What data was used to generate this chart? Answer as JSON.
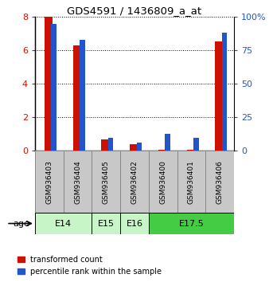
{
  "title": "GDS4591 / 1436809_a_at",
  "samples": [
    "GSM936403",
    "GSM936404",
    "GSM936405",
    "GSM936402",
    "GSM936400",
    "GSM936401",
    "GSM936406"
  ],
  "transformed_count": [
    8.0,
    6.3,
    0.7,
    0.4,
    0.05,
    0.05,
    6.55
  ],
  "percentile_rank": [
    95,
    83,
    10,
    6,
    13,
    10,
    88
  ],
  "age_boundaries": [
    {
      "label": "E14",
      "start": 0,
      "end": 1,
      "color": "#c8f5c8"
    },
    {
      "label": "E15",
      "start": 2,
      "end": 2,
      "color": "#c8f5c8"
    },
    {
      "label": "E16",
      "start": 3,
      "end": 3,
      "color": "#c8f5c8"
    },
    {
      "label": "E17.5",
      "start": 4,
      "end": 6,
      "color": "#44cc44"
    }
  ],
  "ylim_left": [
    0,
    8
  ],
  "ylim_right": [
    0,
    100
  ],
  "yticks_left": [
    0,
    2,
    4,
    6,
    8
  ],
  "yticks_right": [
    0,
    25,
    50,
    75,
    100
  ],
  "yticklabels_right": [
    "0",
    "25",
    "50",
    "75",
    "100%"
  ],
  "bar_color_red": "#cc1100",
  "bar_color_blue": "#2255cc",
  "sample_bg_color": "#c8c8c8",
  "sample_border_color": "#888888",
  "legend_red": "transformed count",
  "legend_blue": "percentile rank within the sample",
  "age_label": "age",
  "red_bar_width": 0.28,
  "blue_bar_width": 0.18
}
